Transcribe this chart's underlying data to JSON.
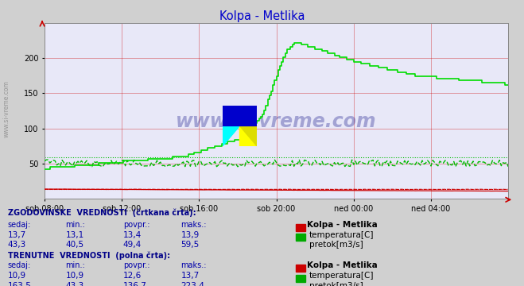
{
  "title": "Kolpa - Metlika",
  "title_color": "#0000cc",
  "bg_color": "#d0d0d0",
  "plot_bg_color": "#e8e8f8",
  "x_labels": [
    "sob 08:00",
    "sob 12:00",
    "sob 16:00",
    "sob 20:00",
    "ned 00:00",
    "ned 04:00"
  ],
  "x_tick_pos": [
    0.0,
    0.167,
    0.333,
    0.5,
    0.667,
    0.833
  ],
  "y_ticks": [
    50,
    100,
    150,
    200
  ],
  "y_min": 0,
  "y_max": 250,
  "grid_color": "#cc0000",
  "temp_color": "#cc0000",
  "pretok_color": "#00bb00",
  "watermark": "www.si-vreme.com",
  "hist_temp_vals": [
    "13,7",
    "13,1",
    "13,4",
    "13,9"
  ],
  "hist_pretok_vals": [
    "43,3",
    "40,5",
    "49,4",
    "59,5"
  ],
  "curr_temp_vals": [
    "10,9",
    "10,9",
    "12,6",
    "13,7"
  ],
  "curr_pretok_vals": [
    "163,5",
    "43,3",
    "136,7",
    "223,4"
  ],
  "col_headers": [
    "sedaj:",
    "min.:",
    "povpr.:",
    "maks.:"
  ],
  "station_name": "Kolpa - Metlika",
  "hist_label_bold": "ZGODOVINSKE  VREDNOSTI  (črtkana črta):",
  "curr_label_bold": "TRENUTNE  VREDNOSTI  (polna črta):",
  "temp_label": "temperatura[C]",
  "pretok_label": "pretok[m3/s]",
  "hist_temp_avg": 13.4,
  "hist_temp_max": 13.9,
  "hist_pretok_avg": 49.4,
  "hist_pretok_max": 59.5,
  "curr_pretok_max": 223.4,
  "curr_pretok_min": 43.3
}
